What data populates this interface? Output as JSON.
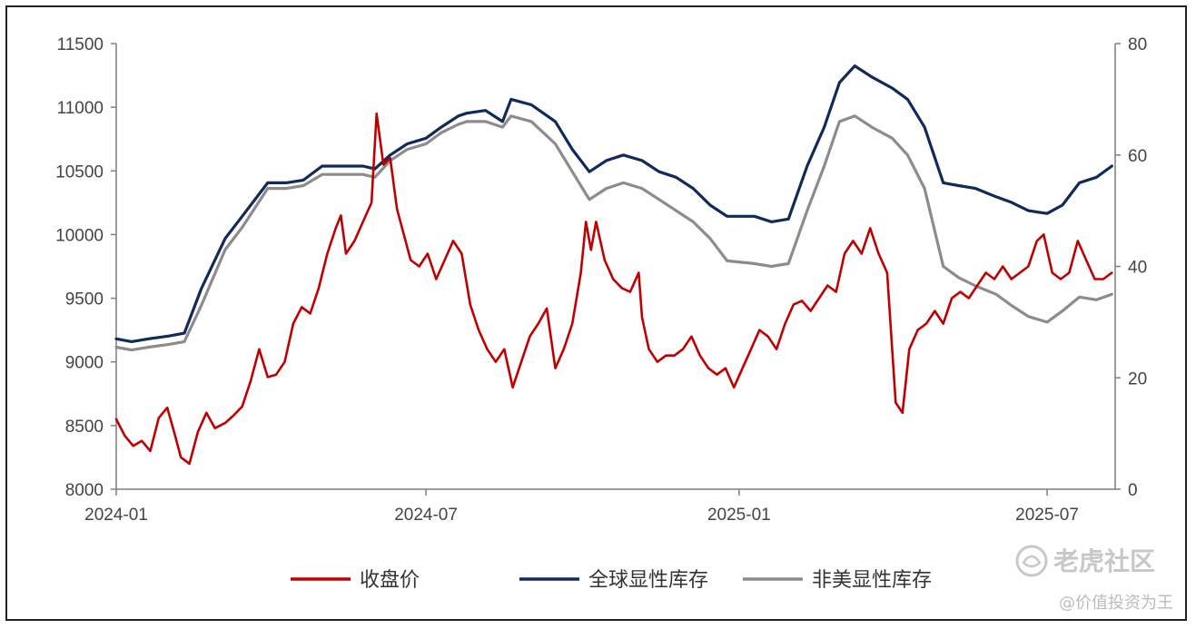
{
  "chart_data": {
    "type": "line",
    "title": "",
    "xlabel": "",
    "ylabel": "",
    "x_ticks": [
      "2024-01",
      "2024-07",
      "2025-01",
      "2025-07"
    ],
    "x_tick_dates": [
      "2024-01-01",
      "2024-07-01",
      "2025-01-01",
      "2025-07-01"
    ],
    "x_range": [
      "2024-01-01",
      "2025-08-10"
    ],
    "y_left": {
      "range": [
        8000,
        11500
      ],
      "ticks": [
        8000,
        8500,
        9000,
        9500,
        10000,
        10500,
        11000,
        11500
      ]
    },
    "y_right": {
      "range": [
        0,
        80
      ],
      "ticks": [
        0,
        20,
        40,
        60,
        80
      ]
    },
    "grid": false,
    "legend_position": "bottom",
    "series": [
      {
        "name": "收盘价",
        "axis": "left",
        "color": "#c00000",
        "points": [
          [
            "2024-01-01",
            8550
          ],
          [
            "2024-01-06",
            8420
          ],
          [
            "2024-01-11",
            8340
          ],
          [
            "2024-01-16",
            8380
          ],
          [
            "2024-01-21",
            8300
          ],
          [
            "2024-01-26",
            8560
          ],
          [
            "2024-01-31",
            8640
          ],
          [
            "2024-02-04",
            8450
          ],
          [
            "2024-02-08",
            8250
          ],
          [
            "2024-02-13",
            8200
          ],
          [
            "2024-02-18",
            8450
          ],
          [
            "2024-02-23",
            8600
          ],
          [
            "2024-02-28",
            8480
          ],
          [
            "2024-03-05",
            8520
          ],
          [
            "2024-03-10",
            8580
          ],
          [
            "2024-03-15",
            8650
          ],
          [
            "2024-03-20",
            8850
          ],
          [
            "2024-03-25",
            9100
          ],
          [
            "2024-03-30",
            8880
          ],
          [
            "2024-04-04",
            8900
          ],
          [
            "2024-04-09",
            9000
          ],
          [
            "2024-04-14",
            9300
          ],
          [
            "2024-04-19",
            9430
          ],
          [
            "2024-04-24",
            9380
          ],
          [
            "2024-04-29",
            9580
          ],
          [
            "2024-05-04",
            9850
          ],
          [
            "2024-05-09",
            10050
          ],
          [
            "2024-05-12",
            10150
          ],
          [
            "2024-05-15",
            9850
          ],
          [
            "2024-05-20",
            9950
          ],
          [
            "2024-05-25",
            10100
          ],
          [
            "2024-05-30",
            10250
          ],
          [
            "2024-06-02",
            10950
          ],
          [
            "2024-06-06",
            10550
          ],
          [
            "2024-06-10",
            10600
          ],
          [
            "2024-06-14",
            10200
          ],
          [
            "2024-06-18",
            10000
          ],
          [
            "2024-06-22",
            9800
          ],
          [
            "2024-06-27",
            9750
          ],
          [
            "2024-07-02",
            9850
          ],
          [
            "2024-07-07",
            9650
          ],
          [
            "2024-07-12",
            9800
          ],
          [
            "2024-07-17",
            9950
          ],
          [
            "2024-07-22",
            9850
          ],
          [
            "2024-07-27",
            9450
          ],
          [
            "2024-08-01",
            9250
          ],
          [
            "2024-08-06",
            9100
          ],
          [
            "2024-08-11",
            9000
          ],
          [
            "2024-08-16",
            9100
          ],
          [
            "2024-08-21",
            8800
          ],
          [
            "2024-08-26",
            9000
          ],
          [
            "2024-08-31",
            9200
          ],
          [
            "2024-09-05",
            9300
          ],
          [
            "2024-09-10",
            9420
          ],
          [
            "2024-09-15",
            8950
          ],
          [
            "2024-09-20",
            9100
          ],
          [
            "2024-09-25",
            9300
          ],
          [
            "2024-09-30",
            9700
          ],
          [
            "2024-10-03",
            10100
          ],
          [
            "2024-10-06",
            9880
          ],
          [
            "2024-10-09",
            10100
          ],
          [
            "2024-10-14",
            9800
          ],
          [
            "2024-10-19",
            9650
          ],
          [
            "2024-10-24",
            9580
          ],
          [
            "2024-10-29",
            9550
          ],
          [
            "2024-11-03",
            9700
          ],
          [
            "2024-11-05",
            9350
          ],
          [
            "2024-11-09",
            9100
          ],
          [
            "2024-11-14",
            9000
          ],
          [
            "2024-11-19",
            9050
          ],
          [
            "2024-11-24",
            9050
          ],
          [
            "2024-11-29",
            9100
          ],
          [
            "2024-12-04",
            9200
          ],
          [
            "2024-12-09",
            9050
          ],
          [
            "2024-12-14",
            8950
          ],
          [
            "2024-12-19",
            8900
          ],
          [
            "2024-12-24",
            8950
          ],
          [
            "2024-12-29",
            8800
          ],
          [
            "2025-01-03",
            8950
          ],
          [
            "2025-01-08",
            9100
          ],
          [
            "2025-01-13",
            9250
          ],
          [
            "2025-01-18",
            9200
          ],
          [
            "2025-01-23",
            9100
          ],
          [
            "2025-01-28",
            9300
          ],
          [
            "2025-02-02",
            9450
          ],
          [
            "2025-02-07",
            9480
          ],
          [
            "2025-02-12",
            9400
          ],
          [
            "2025-02-17",
            9500
          ],
          [
            "2025-02-22",
            9600
          ],
          [
            "2025-02-27",
            9550
          ],
          [
            "2025-03-04",
            9850
          ],
          [
            "2025-03-09",
            9950
          ],
          [
            "2025-03-14",
            9850
          ],
          [
            "2025-03-19",
            10050
          ],
          [
            "2025-03-24",
            9850
          ],
          [
            "2025-03-29",
            9700
          ],
          [
            "2025-04-03",
            8680
          ],
          [
            "2025-04-07",
            8600
          ],
          [
            "2025-04-11",
            9100
          ],
          [
            "2025-04-16",
            9250
          ],
          [
            "2025-04-21",
            9300
          ],
          [
            "2025-04-26",
            9400
          ],
          [
            "2025-05-01",
            9300
          ],
          [
            "2025-05-06",
            9500
          ],
          [
            "2025-05-11",
            9550
          ],
          [
            "2025-05-16",
            9500
          ],
          [
            "2025-05-21",
            9600
          ],
          [
            "2025-05-26",
            9700
          ],
          [
            "2025-05-31",
            9650
          ],
          [
            "2025-06-05",
            9750
          ],
          [
            "2025-06-10",
            9650
          ],
          [
            "2025-06-15",
            9700
          ],
          [
            "2025-06-20",
            9750
          ],
          [
            "2025-06-25",
            9950
          ],
          [
            "2025-06-29",
            10000
          ],
          [
            "2025-07-04",
            9700
          ],
          [
            "2025-07-09",
            9650
          ],
          [
            "2025-07-14",
            9700
          ],
          [
            "2025-07-19",
            9950
          ],
          [
            "2025-07-24",
            9800
          ],
          [
            "2025-07-29",
            9650
          ],
          [
            "2025-08-03",
            9650
          ],
          [
            "2025-08-08",
            9700
          ]
        ]
      },
      {
        "name": "全球显性库存",
        "axis": "right",
        "color": "#102a5a",
        "points": [
          [
            "2024-01-01",
            27
          ],
          [
            "2024-01-10",
            26.5
          ],
          [
            "2024-01-20",
            27
          ],
          [
            "2024-02-01",
            27.5
          ],
          [
            "2024-02-10",
            28
          ],
          [
            "2024-02-20",
            36
          ],
          [
            "2024-03-05",
            45
          ],
          [
            "2024-03-15",
            49
          ],
          [
            "2024-03-30",
            55
          ],
          [
            "2024-04-10",
            55
          ],
          [
            "2024-04-20",
            55.5
          ],
          [
            "2024-05-01",
            58
          ],
          [
            "2024-05-15",
            58
          ],
          [
            "2024-05-25",
            58
          ],
          [
            "2024-06-01",
            57.5
          ],
          [
            "2024-06-10",
            60
          ],
          [
            "2024-06-20",
            62
          ],
          [
            "2024-07-01",
            63
          ],
          [
            "2024-07-10",
            65
          ],
          [
            "2024-07-20",
            67
          ],
          [
            "2024-07-25",
            67.5
          ],
          [
            "2024-08-05",
            68
          ],
          [
            "2024-08-15",
            66
          ],
          [
            "2024-08-20",
            70
          ],
          [
            "2024-09-01",
            69
          ],
          [
            "2024-09-15",
            66
          ],
          [
            "2024-09-25",
            61
          ],
          [
            "2024-10-05",
            57
          ],
          [
            "2024-10-15",
            59
          ],
          [
            "2024-10-25",
            60
          ],
          [
            "2024-11-05",
            59
          ],
          [
            "2024-11-15",
            57
          ],
          [
            "2024-11-25",
            56
          ],
          [
            "2024-12-05",
            54
          ],
          [
            "2024-12-15",
            51
          ],
          [
            "2024-12-25",
            49
          ],
          [
            "2025-01-10",
            49
          ],
          [
            "2025-01-20",
            48
          ],
          [
            "2025-01-30",
            48.5
          ],
          [
            "2025-02-10",
            58
          ],
          [
            "2025-02-20",
            65
          ],
          [
            "2025-03-01",
            73
          ],
          [
            "2025-03-10",
            76
          ],
          [
            "2025-03-20",
            74
          ],
          [
            "2025-04-01",
            72
          ],
          [
            "2025-04-10",
            70
          ],
          [
            "2025-04-20",
            65
          ],
          [
            "2025-05-01",
            55
          ],
          [
            "2025-05-10",
            54.5
          ],
          [
            "2025-05-20",
            54
          ],
          [
            "2025-06-01",
            52.5
          ],
          [
            "2025-06-10",
            51.5
          ],
          [
            "2025-06-20",
            50
          ],
          [
            "2025-07-01",
            49.5
          ],
          [
            "2025-07-10",
            51
          ],
          [
            "2025-07-20",
            55
          ],
          [
            "2025-07-30",
            56
          ],
          [
            "2025-08-08",
            58
          ]
        ]
      },
      {
        "name": "非美显性库存",
        "axis": "right",
        "color": "#8c8c8c",
        "points": [
          [
            "2024-01-01",
            25.5
          ],
          [
            "2024-01-10",
            25
          ],
          [
            "2024-01-20",
            25.5
          ],
          [
            "2024-02-01",
            26
          ],
          [
            "2024-02-10",
            26.5
          ],
          [
            "2024-02-20",
            33
          ],
          [
            "2024-03-05",
            43
          ],
          [
            "2024-03-15",
            47
          ],
          [
            "2024-03-30",
            54
          ],
          [
            "2024-04-10",
            54
          ],
          [
            "2024-04-20",
            54.5
          ],
          [
            "2024-05-01",
            56.5
          ],
          [
            "2024-05-15",
            56.5
          ],
          [
            "2024-05-25",
            56.5
          ],
          [
            "2024-06-01",
            56
          ],
          [
            "2024-06-10",
            59
          ],
          [
            "2024-06-20",
            61
          ],
          [
            "2024-07-01",
            62
          ],
          [
            "2024-07-10",
            64
          ],
          [
            "2024-07-20",
            65.5
          ],
          [
            "2024-07-25",
            66
          ],
          [
            "2024-08-05",
            66
          ],
          [
            "2024-08-15",
            65
          ],
          [
            "2024-08-20",
            67
          ],
          [
            "2024-09-01",
            66
          ],
          [
            "2024-09-15",
            62
          ],
          [
            "2024-09-25",
            57
          ],
          [
            "2024-10-05",
            52
          ],
          [
            "2024-10-15",
            54
          ],
          [
            "2024-10-25",
            55
          ],
          [
            "2024-11-05",
            54
          ],
          [
            "2024-11-15",
            52
          ],
          [
            "2024-11-25",
            50
          ],
          [
            "2024-12-05",
            48
          ],
          [
            "2024-12-15",
            45
          ],
          [
            "2024-12-25",
            41
          ],
          [
            "2025-01-10",
            40.5
          ],
          [
            "2025-01-20",
            40
          ],
          [
            "2025-01-30",
            40.5
          ],
          [
            "2025-02-10",
            50
          ],
          [
            "2025-02-20",
            58
          ],
          [
            "2025-03-01",
            66
          ],
          [
            "2025-03-10",
            67
          ],
          [
            "2025-03-20",
            65
          ],
          [
            "2025-04-01",
            63
          ],
          [
            "2025-04-10",
            60
          ],
          [
            "2025-04-20",
            54
          ],
          [
            "2025-05-01",
            40
          ],
          [
            "2025-05-10",
            38
          ],
          [
            "2025-05-20",
            36.5
          ],
          [
            "2025-06-01",
            35
          ],
          [
            "2025-06-10",
            33
          ],
          [
            "2025-06-20",
            31
          ],
          [
            "2025-07-01",
            30
          ],
          [
            "2025-07-10",
            32
          ],
          [
            "2025-07-20",
            34.5
          ],
          [
            "2025-07-30",
            34
          ],
          [
            "2025-08-08",
            35
          ]
        ]
      }
    ]
  },
  "watermark": {
    "brand": "老虎社区",
    "handle": "@价值投资为王"
  }
}
